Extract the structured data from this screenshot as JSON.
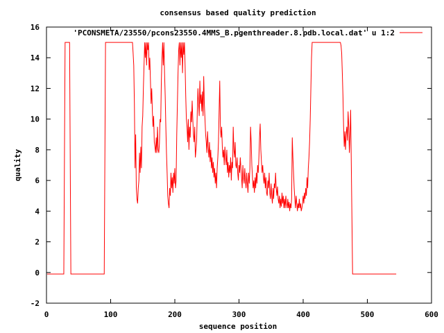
{
  "chart_data": {
    "type": "line",
    "title": "consensus based quality prediction",
    "xlabel": "sequence position",
    "ylabel": "quality",
    "xlim": [
      0,
      600
    ],
    "ylim": [
      -2,
      16
    ],
    "xticks": [
      "0",
      "100",
      "200",
      "300",
      "400",
      "500",
      "600"
    ],
    "yticks": [
      "-2",
      "0",
      "2",
      "4",
      "6",
      "8",
      "10",
      "12",
      "14",
      "16"
    ],
    "grid": false,
    "legend_position": "top-right",
    "line_color": "#ff0000",
    "series": [
      {
        "name": "'PCONSMETA/23550/pcons23550.4MMS_B.pgenthreader.8.pdb.local.dat' u 1:2",
        "points": [
          [
            1,
            -0.1
          ],
          [
            27,
            -0.1
          ],
          [
            28,
            7.5
          ],
          [
            29,
            15
          ],
          [
            36,
            15
          ],
          [
            37,
            7.5
          ],
          [
            38,
            -0.1
          ],
          [
            90,
            -0.1
          ],
          [
            91,
            7.5
          ],
          [
            92,
            15
          ],
          [
            134,
            15
          ],
          [
            135,
            14.3
          ],
          [
            136,
            13.5
          ],
          [
            137,
            11
          ],
          [
            138,
            6.8
          ],
          [
            139,
            9
          ],
          [
            140,
            5.5
          ],
          [
            141,
            4.8
          ],
          [
            142,
            4.5
          ],
          [
            143,
            5.5
          ],
          [
            144,
            6
          ],
          [
            145,
            7.8
          ],
          [
            146,
            6.5
          ],
          [
            147,
            8.2
          ],
          [
            148,
            6.8
          ],
          [
            149,
            9.5
          ],
          [
            150,
            10.2
          ],
          [
            151,
            12
          ],
          [
            152,
            13.5
          ],
          [
            153,
            15
          ],
          [
            154,
            14
          ],
          [
            155,
            15
          ],
          [
            156,
            13.5
          ],
          [
            157,
            15
          ],
          [
            158,
            14.5
          ],
          [
            159,
            15
          ],
          [
            160,
            13.2
          ],
          [
            161,
            14
          ],
          [
            162,
            12.5
          ],
          [
            163,
            11
          ],
          [
            164,
            12
          ],
          [
            165,
            10.5
          ],
          [
            166,
            9.5
          ],
          [
            167,
            10.2
          ],
          [
            168,
            8.5
          ],
          [
            169,
            8.2
          ],
          [
            170,
            7.8
          ],
          [
            171,
            8.8
          ],
          [
            172,
            7.8
          ],
          [
            173,
            9.5
          ],
          [
            174,
            8
          ],
          [
            175,
            7.8
          ],
          [
            176,
            8.4
          ],
          [
            177,
            10
          ],
          [
            178,
            9.8
          ],
          [
            179,
            12.5
          ],
          [
            180,
            14
          ],
          [
            181,
            15
          ],
          [
            182,
            13.5
          ],
          [
            183,
            15
          ],
          [
            184,
            13
          ],
          [
            185,
            11.5
          ],
          [
            186,
            9.5
          ],
          [
            187,
            7.8
          ],
          [
            188,
            6.5
          ],
          [
            189,
            5
          ],
          [
            190,
            4.5
          ],
          [
            191,
            4.2
          ],
          [
            192,
            5.5
          ],
          [
            193,
            5
          ],
          [
            194,
            6.5
          ],
          [
            195,
            5.5
          ],
          [
            196,
            6.2
          ],
          [
            197,
            5.2
          ],
          [
            198,
            6.5
          ],
          [
            199,
            5.8
          ],
          [
            200,
            6.8
          ],
          [
            201,
            5.5
          ],
          [
            202,
            6
          ],
          [
            203,
            9
          ],
          [
            204,
            11
          ],
          [
            205,
            13
          ],
          [
            206,
            14.5
          ],
          [
            207,
            15
          ],
          [
            208,
            13.5
          ],
          [
            209,
            15
          ],
          [
            210,
            14
          ],
          [
            211,
            15
          ],
          [
            212,
            13
          ],
          [
            213,
            15
          ],
          [
            214,
            14.2
          ],
          [
            215,
            15
          ],
          [
            216,
            13.5
          ],
          [
            217,
            11.5
          ],
          [
            218,
            10
          ],
          [
            219,
            9.5
          ],
          [
            220,
            8.5
          ],
          [
            221,
            10
          ],
          [
            222,
            8
          ],
          [
            223,
            9.5
          ],
          [
            224,
            8.8
          ],
          [
            225,
            10.5
          ],
          [
            226,
            9.8
          ],
          [
            227,
            11.2
          ],
          [
            228,
            10
          ],
          [
            229,
            9
          ],
          [
            230,
            8.5
          ],
          [
            231,
            9.5
          ],
          [
            232,
            7.5
          ],
          [
            233,
            8
          ],
          [
            234,
            8.6
          ],
          [
            235,
            10.5
          ],
          [
            236,
            12
          ],
          [
            237,
            11
          ],
          [
            238,
            10.2
          ],
          [
            239,
            12.5
          ],
          [
            240,
            11
          ],
          [
            241,
            11.6
          ],
          [
            242,
            10.5
          ],
          [
            243,
            11.8
          ],
          [
            244,
            10.2
          ],
          [
            245,
            12.8
          ],
          [
            246,
            11
          ],
          [
            247,
            10
          ],
          [
            248,
            9
          ],
          [
            249,
            8.5
          ],
          [
            250,
            7.8
          ],
          [
            251,
            9.2
          ],
          [
            252,
            8.2
          ],
          [
            253,
            7.5
          ],
          [
            254,
            8.5
          ],
          [
            255,
            7.2
          ],
          [
            256,
            8
          ],
          [
            257,
            6.8
          ],
          [
            258,
            7.5
          ],
          [
            259,
            6.5
          ],
          [
            260,
            7.2
          ],
          [
            261,
            6.2
          ],
          [
            262,
            6.8
          ],
          [
            263,
            5.8
          ],
          [
            264,
            6.5
          ],
          [
            265,
            5.5
          ],
          [
            266,
            6.8
          ],
          [
            267,
            7.5
          ],
          [
            268,
            8.5
          ],
          [
            269,
            10.5
          ],
          [
            270,
            12.5
          ],
          [
            271,
            9.5
          ],
          [
            272,
            8.8
          ],
          [
            273,
            9.5
          ],
          [
            274,
            8.2
          ],
          [
            275,
            7.5
          ],
          [
            276,
            8
          ],
          [
            277,
            7
          ],
          [
            278,
            8.2
          ],
          [
            279,
            7.5
          ],
          [
            280,
            7
          ],
          [
            281,
            8
          ],
          [
            282,
            6.5
          ],
          [
            283,
            7.2
          ],
          [
            284,
            6.2
          ],
          [
            285,
            7
          ],
          [
            286,
            6.5
          ],
          [
            287,
            7.5
          ],
          [
            288,
            6
          ],
          [
            289,
            7.2
          ],
          [
            290,
            6.8
          ],
          [
            291,
            9.5
          ],
          [
            292,
            8
          ],
          [
            293,
            7.5
          ],
          [
            294,
            8.5
          ],
          [
            295,
            7
          ],
          [
            296,
            6.8
          ],
          [
            297,
            7.5
          ],
          [
            298,
            6.5
          ],
          [
            299,
            6
          ],
          [
            300,
            7
          ],
          [
            301,
            6.5
          ],
          [
            302,
            7.5
          ],
          [
            303,
            6.8
          ],
          [
            304,
            6.2
          ],
          [
            305,
            5.5
          ],
          [
            306,
            7
          ],
          [
            307,
            6.2
          ],
          [
            308,
            5.8
          ],
          [
            309,
            6.8
          ],
          [
            310,
            6
          ],
          [
            311,
            5.5
          ],
          [
            312,
            6.5
          ],
          [
            313,
            5.8
          ],
          [
            314,
            5.2
          ],
          [
            315,
            6.5
          ],
          [
            316,
            5.8
          ],
          [
            317,
            6.8
          ],
          [
            318,
            9.5
          ],
          [
            319,
            8.5
          ],
          [
            320,
            7
          ],
          [
            321,
            6.2
          ],
          [
            322,
            5.5
          ],
          [
            323,
            6
          ],
          [
            324,
            5.2
          ],
          [
            325,
            6.2
          ],
          [
            326,
            5.5
          ],
          [
            327,
            6.5
          ],
          [
            328,
            5.8
          ],
          [
            329,
            7
          ],
          [
            330,
            6.5
          ],
          [
            331,
            7.5
          ],
          [
            332,
            8.8
          ],
          [
            333,
            9.7
          ],
          [
            334,
            8
          ],
          [
            335,
            7.2
          ],
          [
            336,
            6.5
          ],
          [
            337,
            7
          ],
          [
            338,
            6.2
          ],
          [
            339,
            5.8
          ],
          [
            340,
            6.5
          ],
          [
            341,
            5.5
          ],
          [
            342,
            6.2
          ],
          [
            343,
            5.2
          ],
          [
            344,
            5
          ],
          [
            345,
            6
          ],
          [
            346,
            5.5
          ],
          [
            347,
            6.5
          ],
          [
            348,
            5.2
          ],
          [
            349,
            4.8
          ],
          [
            350,
            5.8
          ],
          [
            351,
            5
          ],
          [
            352,
            4.5
          ],
          [
            353,
            5.5
          ],
          [
            354,
            4.8
          ],
          [
            355,
            5.8
          ],
          [
            356,
            5.5
          ],
          [
            357,
            6.5
          ],
          [
            358,
            5.5
          ],
          [
            359,
            5
          ],
          [
            360,
            5.6
          ],
          [
            361,
            4.8
          ],
          [
            362,
            4.5
          ],
          [
            363,
            5
          ],
          [
            364,
            4.2
          ],
          [
            365,
            4.8
          ],
          [
            366,
            4.3
          ],
          [
            367,
            5.2
          ],
          [
            368,
            4.5
          ],
          [
            369,
            5
          ],
          [
            370,
            4.2
          ],
          [
            371,
            4.8
          ],
          [
            372,
            4.2
          ],
          [
            373,
            5
          ],
          [
            374,
            4.5
          ],
          [
            375,
            4.2
          ],
          [
            376,
            4.8
          ],
          [
            377,
            4.2
          ],
          [
            378,
            4.6
          ],
          [
            379,
            4
          ],
          [
            380,
            4.5
          ],
          [
            381,
            4.2
          ],
          [
            382,
            4.8
          ],
          [
            383,
            8.8
          ],
          [
            384,
            7.5
          ],
          [
            385,
            6.5
          ],
          [
            386,
            5.5
          ],
          [
            387,
            4.8
          ],
          [
            388,
            4.2
          ],
          [
            389,
            5
          ],
          [
            390,
            4.5
          ],
          [
            391,
            4
          ],
          [
            392,
            4.5
          ],
          [
            393,
            4.2
          ],
          [
            394,
            4.8
          ],
          [
            395,
            4.2
          ],
          [
            396,
            4.5
          ],
          [
            397,
            4
          ],
          [
            398,
            4.2
          ],
          [
            399,
            4.5
          ],
          [
            400,
            5
          ],
          [
            401,
            4.5
          ],
          [
            402,
            5.2
          ],
          [
            403,
            4.8
          ],
          [
            404,
            5.5
          ],
          [
            405,
            5
          ],
          [
            406,
            6.2
          ],
          [
            407,
            5.5
          ],
          [
            408,
            6.8
          ],
          [
            409,
            7.5
          ],
          [
            410,
            8.5
          ],
          [
            411,
            10
          ],
          [
            412,
            12
          ],
          [
            413,
            14
          ],
          [
            414,
            15
          ],
          [
            458,
            15
          ],
          [
            459,
            14.8
          ],
          [
            460,
            14.3
          ],
          [
            461,
            13
          ],
          [
            462,
            11.5
          ],
          [
            463,
            9.5
          ],
          [
            464,
            8.2
          ],
          [
            465,
            9.2
          ],
          [
            466,
            8
          ],
          [
            467,
            9
          ],
          [
            468,
            9.5
          ],
          [
            469,
            8.6
          ],
          [
            470,
            10.5
          ],
          [
            471,
            9.5
          ],
          [
            472,
            7.8
          ],
          [
            473,
            9
          ],
          [
            474,
            10.6
          ],
          [
            475,
            7
          ],
          [
            476,
            3.5
          ],
          [
            477,
            -0.1
          ],
          [
            545,
            -0.1
          ]
        ]
      }
    ]
  }
}
